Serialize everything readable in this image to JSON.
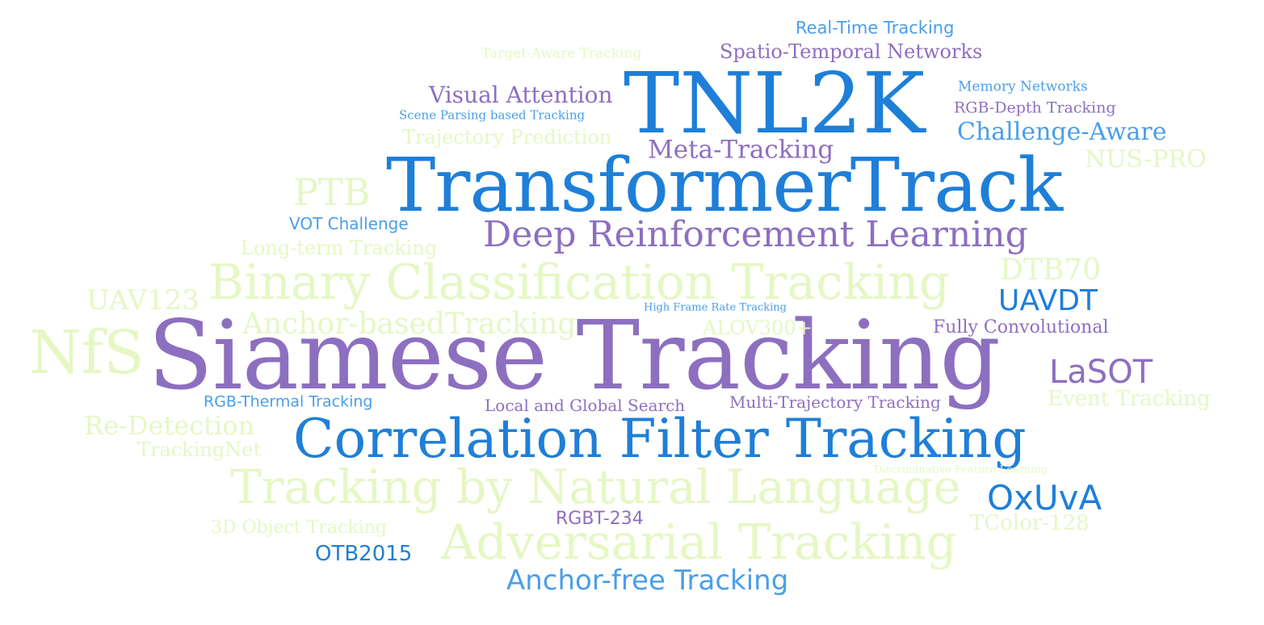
{
  "colors": {
    "purple": "#8d6fc0",
    "blue": "#1e7fd8",
    "light_blue": "#4a9ee8",
    "pale_green": "#e6f7c4",
    "background": "#ffffff"
  },
  "words": {
    "tnl2k": "TNL2K",
    "transformer_track": "TransformerTrack",
    "siamese_tracking": "Siamese Tracking",
    "correlation_filter_tracking": "Correlation Filter Tracking",
    "binary_classification_tracking": "Binary Classification Tracking",
    "tracking_by_natural_language": "Tracking by Natural Language",
    "adversarial_tracking": "Adversarial Tracking",
    "deep_reinforcement_learning": "Deep Reinforcement Learning",
    "nfs": "NfS",
    "anchor_free_tracking": "Anchor-free Tracking",
    "meta_tracking": "Meta-Tracking",
    "challenge_aware": "Challenge-Aware",
    "visual_attention": "Visual Attention",
    "spatio_temporal_networks": "Spatio-Temporal Networks",
    "real_time_tracking": "Real-Time Tracking",
    "target_aware_tracking": "Target-Aware Tracking",
    "memory_networks": "Memory Networks",
    "rgb_depth_tracking": "RGB-Depth Tracking",
    "scene_parsing_tracking": "Scene Parsing based Tracking",
    "trajectory_prediction": "Trajectory Prediction",
    "nus_pro": "NUS-PRO",
    "ptb": "PTB",
    "vot_challenge": "VOT Challenge",
    "long_term_tracking": "Long-term Tracking",
    "dtb70": "DTB70",
    "uav123": "UAV123",
    "uavdt": "UAVDT",
    "high_frame_rate_tracking": "High Frame Rate Tracking",
    "anchor_based_tracking": "Anchor-basedTracking",
    "alov300": "ALOV300+",
    "fully_convolutional": "Fully Convolutional",
    "lasot": "LaSOT",
    "rgb_thermal_tracking": "RGB-Thermal Tracking",
    "local_global_search": "Local and Global Search",
    "multi_trajectory_tracking": "Multi-Trajectory Tracking",
    "event_tracking": "Event Tracking",
    "re_detection": "Re-Detection",
    "trackingnet": "TrackingNet",
    "discriminative_feature_learning": "Discriminative Feature Learning",
    "oxuva": "OxUvA",
    "rgbt_234": "RGBT-234",
    "object_3d_tracking": "3D Object Tracking",
    "tcolor_128": "TColor-128",
    "otb2015": "OTB2015"
  }
}
